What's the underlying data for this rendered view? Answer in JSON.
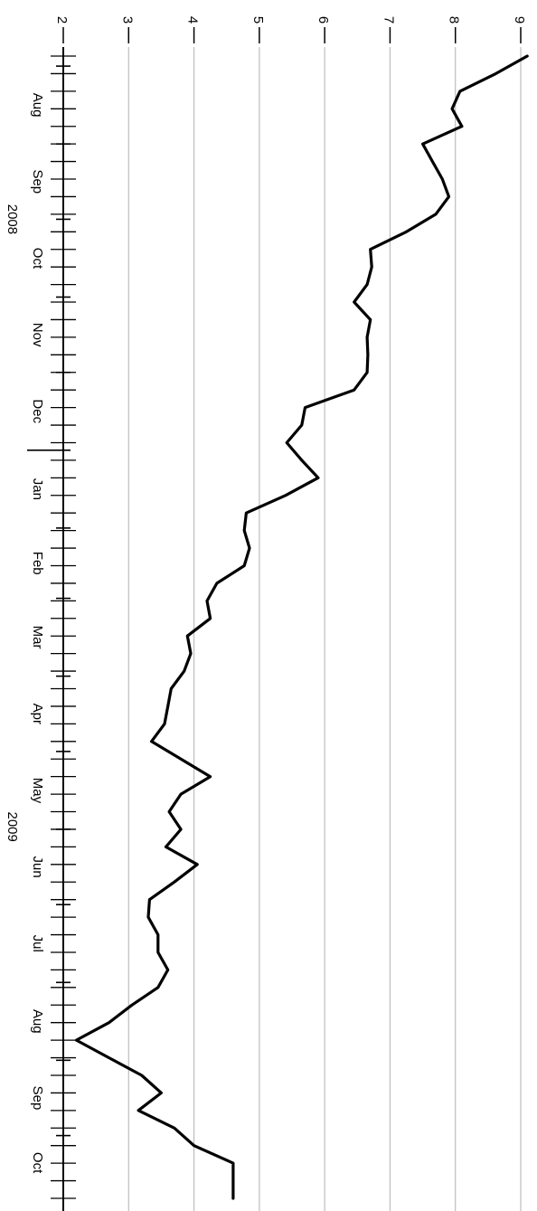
{
  "colors": {
    "line": "#000000",
    "grid": "#bdbdbd",
    "axis": "#000000",
    "background": "#ffffff"
  },
  "chart_data": {
    "type": "line",
    "orientation": "rotated-90-clockwise",
    "title": "",
    "xlabel": "",
    "ylabel": "",
    "grid": "horizontal value gridlines",
    "legend": "none",
    "xlim": [
      "2008-07-28",
      "2009-10-26"
    ],
    "ylim": [
      2,
      9.1
    ],
    "y_ticks": [
      "2",
      "3",
      "4",
      "5",
      "6",
      "7",
      "8",
      "9"
    ],
    "x_month_labels": [
      "Aug",
      "Sep",
      "Oct",
      "Nov",
      "Dec",
      "Jan",
      "Feb",
      "Mar",
      "Apr",
      "May",
      "Jun",
      "Jul",
      "Aug",
      "Sep",
      "Oct"
    ],
    "x_month_dates": [
      "2008-08-01",
      "2008-09-01",
      "2008-10-01",
      "2008-11-01",
      "2008-12-01",
      "2009-01-01",
      "2009-02-01",
      "2009-03-01",
      "2009-04-01",
      "2009-05-01",
      "2009-06-01",
      "2009-07-01",
      "2009-08-01",
      "2009-09-01",
      "2009-10-01"
    ],
    "x_year_labels": [
      {
        "label": "2008",
        "date": "2008-10-01"
      },
      {
        "label": "2009",
        "date": "2009-05-31"
      }
    ],
    "series": [
      {
        "x": [
          "2008-07-28",
          "2008-08-04",
          "2008-08-11",
          "2008-08-18",
          "2008-08-25",
          "2008-09-01",
          "2008-09-08",
          "2008-09-15",
          "2008-09-22",
          "2008-09-29",
          "2008-10-06",
          "2008-10-13",
          "2008-10-20",
          "2008-10-27",
          "2008-11-03",
          "2008-11-10",
          "2008-11-17",
          "2008-11-24",
          "2008-12-01",
          "2008-12-08",
          "2008-12-15",
          "2008-12-22",
          "2008-12-29",
          "2009-01-05",
          "2009-01-12",
          "2009-01-19",
          "2009-01-26",
          "2009-02-02",
          "2009-02-09",
          "2009-02-16",
          "2009-02-23",
          "2009-03-02",
          "2009-03-09",
          "2009-03-16",
          "2009-03-23",
          "2009-03-30",
          "2009-04-06",
          "2009-04-13",
          "2009-04-20",
          "2009-04-27",
          "2009-05-04",
          "2009-05-11",
          "2009-05-18",
          "2009-05-25",
          "2009-06-01",
          "2009-06-08",
          "2009-06-15",
          "2009-06-22",
          "2009-06-29",
          "2009-07-06",
          "2009-07-13",
          "2009-07-20",
          "2009-07-27",
          "2009-08-03",
          "2009-08-10",
          "2009-08-17",
          "2009-08-24",
          "2009-08-31",
          "2009-09-07",
          "2009-09-14",
          "2009-09-21",
          "2009-09-28",
          "2009-10-05",
          "2009-10-12",
          "2009-10-19",
          "2009-10-26"
        ],
        "values": [
          9.1,
          8.62,
          8.07,
          7.95,
          8.1,
          7.5,
          7.65,
          7.8,
          7.9,
          7.7,
          7.25,
          6.7,
          6.72,
          6.65,
          6.45,
          6.7,
          6.65,
          6.66,
          6.65,
          6.45,
          5.7,
          5.65,
          5.42,
          5.65,
          5.9,
          5.4,
          4.8,
          4.77,
          4.85,
          4.77,
          4.35,
          4.2,
          4.25,
          3.9,
          3.95,
          3.85,
          3.65,
          3.6,
          3.55,
          3.35,
          3.8,
          4.25,
          3.8,
          3.62,
          3.8,
          3.57,
          4.05,
          3.7,
          3.32,
          3.3,
          3.45,
          3.45,
          3.6,
          3.45,
          3.05,
          2.7,
          2.2,
          2.7,
          3.2,
          3.5,
          3.15,
          3.7,
          4.0,
          4.6,
          4.6,
          4.6
        ]
      }
    ]
  }
}
